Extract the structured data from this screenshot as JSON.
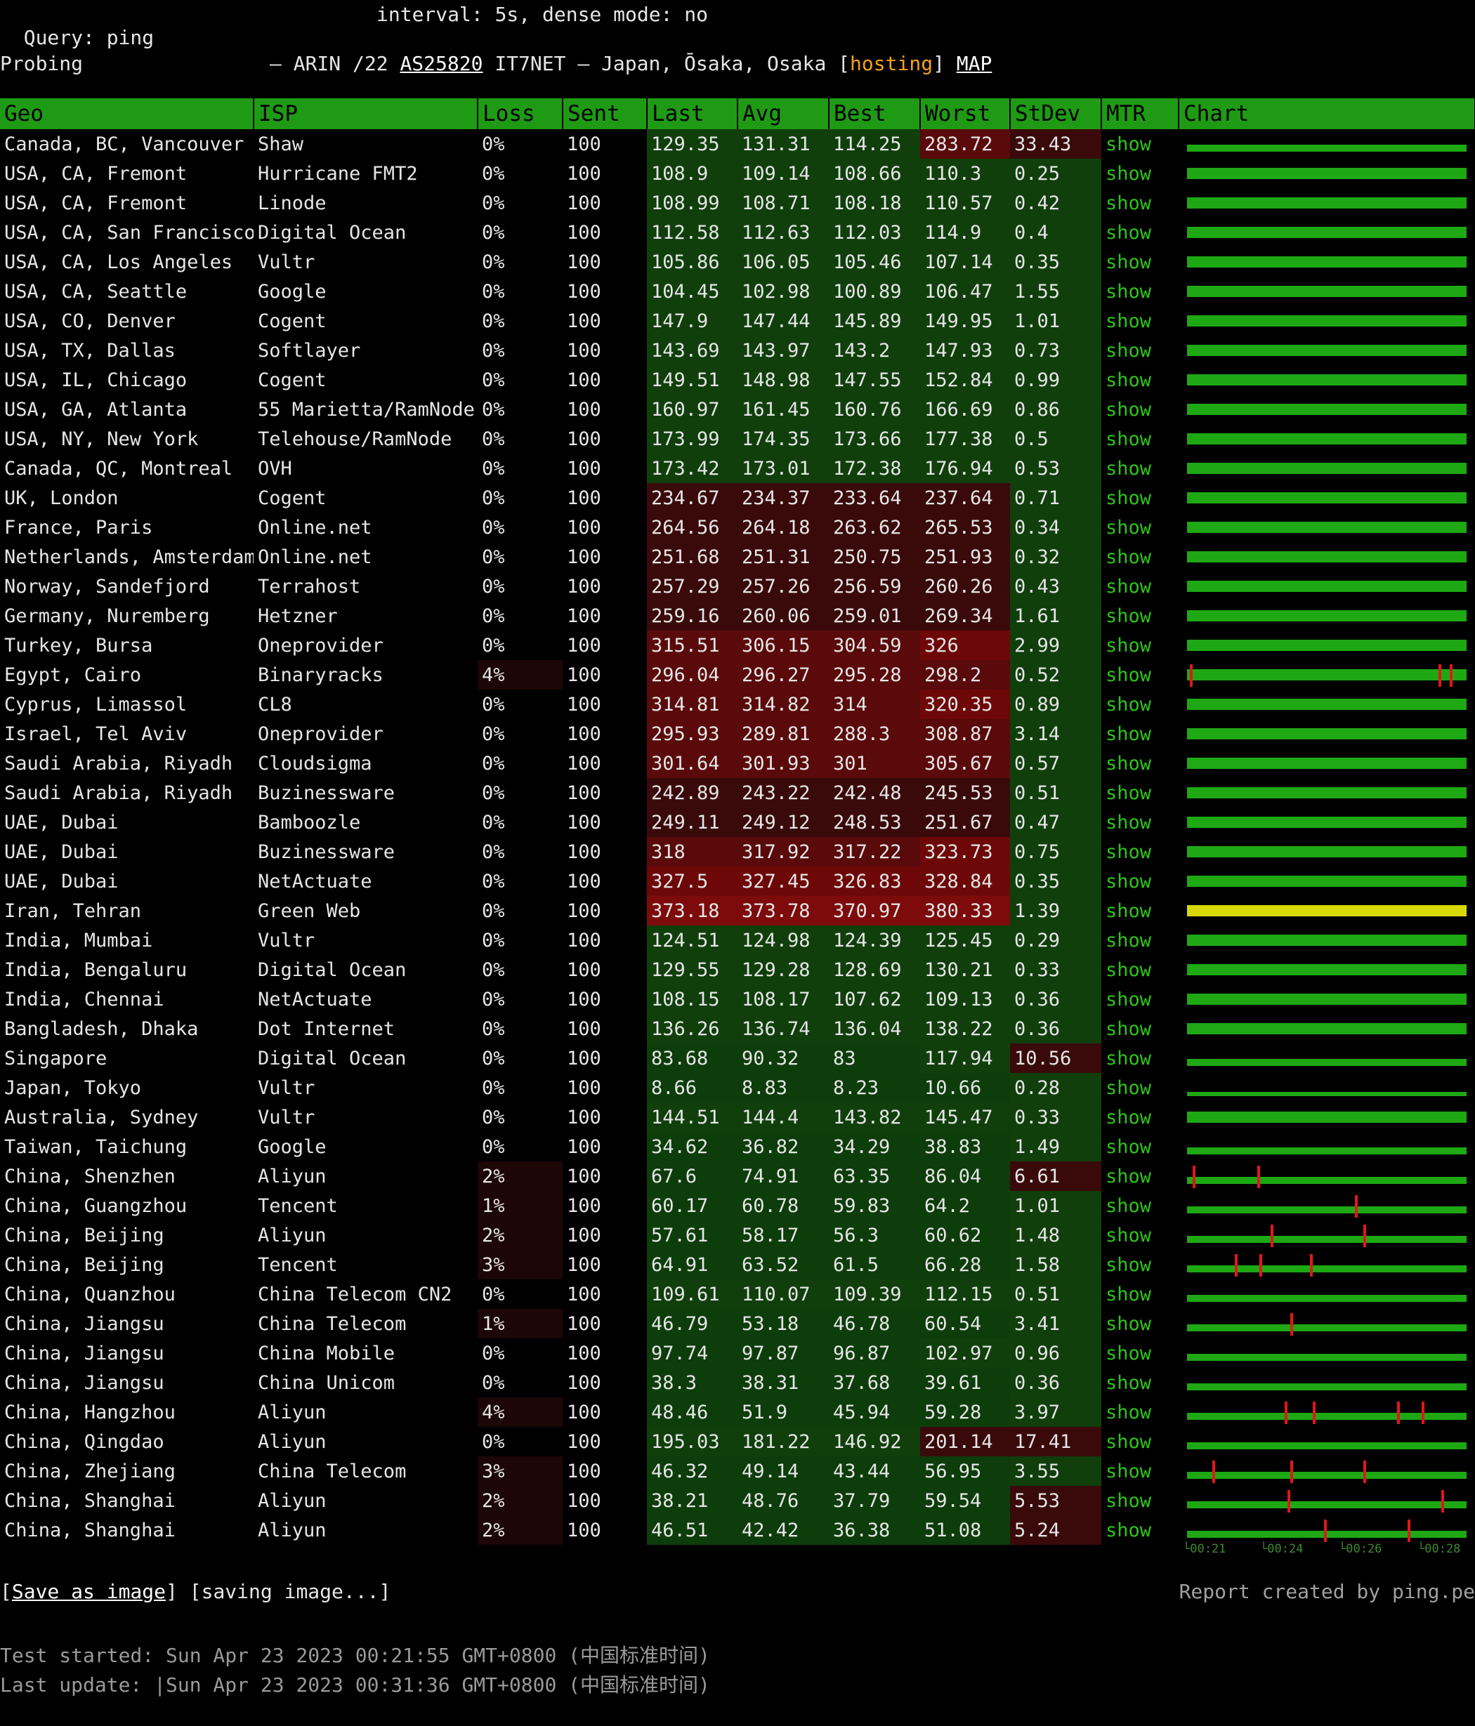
{
  "query": {
    "label": "Query: ping",
    "interval": "interval: 5s, dense mode: no"
  },
  "probing": {
    "label": "Probing",
    "prefix": "– ARIN /22",
    "asn": "AS25820",
    "location": "IT7NET – Japan, Ōsaka, Osaka [",
    "tag": "hosting",
    "tag_close": "]",
    "map": "MAP"
  },
  "columns": [
    "Geo",
    "ISP",
    "Loss",
    "Sent",
    "Last",
    "Avg",
    "Best",
    "Worst",
    "StDev",
    "MTR",
    "Chart"
  ],
  "rows": [
    {
      "geo": "Canada, BC, Vancouver",
      "isp": "Shaw",
      "loss": "0%",
      "sent": "100",
      "last": "129.35",
      "avg": "131.31",
      "best": "114.25",
      "worst": "283.72",
      "stdev": "33.43",
      "mtr": "show"
    },
    {
      "geo": "USA, CA, Fremont",
      "isp": "Hurricane FMT2",
      "loss": "0%",
      "sent": "100",
      "last": "108.9",
      "avg": "109.14",
      "best": "108.66",
      "worst": "110.3",
      "stdev": "0.25",
      "mtr": "show"
    },
    {
      "geo": "USA, CA, Fremont",
      "isp": "Linode",
      "loss": "0%",
      "sent": "100",
      "last": "108.99",
      "avg": "108.71",
      "best": "108.18",
      "worst": "110.57",
      "stdev": "0.42",
      "mtr": "show"
    },
    {
      "geo": "USA, CA, San Francisco",
      "isp": "Digital Ocean",
      "loss": "0%",
      "sent": "100",
      "last": "112.58",
      "avg": "112.63",
      "best": "112.03",
      "worst": "114.9",
      "stdev": "0.4",
      "mtr": "show"
    },
    {
      "geo": "USA, CA, Los Angeles",
      "isp": "Vultr",
      "loss": "0%",
      "sent": "100",
      "last": "105.86",
      "avg": "106.05",
      "best": "105.46",
      "worst": "107.14",
      "stdev": "0.35",
      "mtr": "show"
    },
    {
      "geo": "USA, CA, Seattle",
      "isp": "Google",
      "loss": "0%",
      "sent": "100",
      "last": "104.45",
      "avg": "102.98",
      "best": "100.89",
      "worst": "106.47",
      "stdev": "1.55",
      "mtr": "show"
    },
    {
      "geo": "USA, CO, Denver",
      "isp": "Cogent",
      "loss": "0%",
      "sent": "100",
      "last": "147.9",
      "avg": "147.44",
      "best": "145.89",
      "worst": "149.95",
      "stdev": "1.01",
      "mtr": "show"
    },
    {
      "geo": "USA, TX, Dallas",
      "isp": "Softlayer",
      "loss": "0%",
      "sent": "100",
      "last": "143.69",
      "avg": "143.97",
      "best": "143.2",
      "worst": "147.93",
      "stdev": "0.73",
      "mtr": "show"
    },
    {
      "geo": "USA, IL, Chicago",
      "isp": "Cogent",
      "loss": "0%",
      "sent": "100",
      "last": "149.51",
      "avg": "148.98",
      "best": "147.55",
      "worst": "152.84",
      "stdev": "0.99",
      "mtr": "show"
    },
    {
      "geo": "USA, GA, Atlanta",
      "isp": "55 Marietta/RamNode",
      "loss": "0%",
      "sent": "100",
      "last": "160.97",
      "avg": "161.45",
      "best": "160.76",
      "worst": "166.69",
      "stdev": "0.86",
      "mtr": "show"
    },
    {
      "geo": "USA, NY, New York",
      "isp": "Telehouse/RamNode",
      "loss": "0%",
      "sent": "100",
      "last": "173.99",
      "avg": "174.35",
      "best": "173.66",
      "worst": "177.38",
      "stdev": "0.5",
      "mtr": "show"
    },
    {
      "geo": "Canada, QC, Montreal",
      "isp": "OVH",
      "loss": "0%",
      "sent": "100",
      "last": "173.42",
      "avg": "173.01",
      "best": "172.38",
      "worst": "176.94",
      "stdev": "0.53",
      "mtr": "show"
    },
    {
      "geo": "UK, London",
      "isp": "Cogent",
      "loss": "0%",
      "sent": "100",
      "last": "234.67",
      "avg": "234.37",
      "best": "233.64",
      "worst": "237.64",
      "stdev": "0.71",
      "mtr": "show"
    },
    {
      "geo": "France, Paris",
      "isp": "Online.net",
      "loss": "0%",
      "sent": "100",
      "last": "264.56",
      "avg": "264.18",
      "best": "263.62",
      "worst": "265.53",
      "stdev": "0.34",
      "mtr": "show"
    },
    {
      "geo": "Netherlands, Amsterdam",
      "isp": "Online.net",
      "loss": "0%",
      "sent": "100",
      "last": "251.68",
      "avg": "251.31",
      "best": "250.75",
      "worst": "251.93",
      "stdev": "0.32",
      "mtr": "show"
    },
    {
      "geo": "Norway, Sandefjord",
      "isp": "Terrahost",
      "loss": "0%",
      "sent": "100",
      "last": "257.29",
      "avg": "257.26",
      "best": "256.59",
      "worst": "260.26",
      "stdev": "0.43",
      "mtr": "show"
    },
    {
      "geo": "Germany, Nuremberg",
      "isp": "Hetzner",
      "loss": "0%",
      "sent": "100",
      "last": "259.16",
      "avg": "260.06",
      "best": "259.01",
      "worst": "269.34",
      "stdev": "1.61",
      "mtr": "show"
    },
    {
      "geo": "Turkey, Bursa",
      "isp": "Oneprovider",
      "loss": "0%",
      "sent": "100",
      "last": "315.51",
      "avg": "306.15",
      "best": "304.59",
      "worst": "326",
      "stdev": "2.99",
      "mtr": "show"
    },
    {
      "geo": "Egypt, Cairo",
      "isp": "Binaryracks",
      "loss": "4%",
      "sent": "100",
      "last": "296.04",
      "avg": "296.27",
      "best": "295.28",
      "worst": "298.2",
      "stdev": "0.52",
      "mtr": "show"
    },
    {
      "geo": "Cyprus, Limassol",
      "isp": "CL8",
      "loss": "0%",
      "sent": "100",
      "last": "314.81",
      "avg": "314.82",
      "best": "314",
      "worst": "320.35",
      "stdev": "0.89",
      "mtr": "show"
    },
    {
      "geo": "Israel, Tel Aviv",
      "isp": "Oneprovider",
      "loss": "0%",
      "sent": "100",
      "last": "295.93",
      "avg": "289.81",
      "best": "288.3",
      "worst": "308.87",
      "stdev": "3.14",
      "mtr": "show"
    },
    {
      "geo": "Saudi Arabia, Riyadh",
      "isp": "Cloudsigma",
      "loss": "0%",
      "sent": "100",
      "last": "301.64",
      "avg": "301.93",
      "best": "301",
      "worst": "305.67",
      "stdev": "0.57",
      "mtr": "show"
    },
    {
      "geo": "Saudi Arabia, Riyadh",
      "isp": "Buzinessware",
      "loss": "0%",
      "sent": "100",
      "last": "242.89",
      "avg": "243.22",
      "best": "242.48",
      "worst": "245.53",
      "stdev": "0.51",
      "mtr": "show"
    },
    {
      "geo": "UAE, Dubai",
      "isp": "Bamboozle",
      "loss": "0%",
      "sent": "100",
      "last": "249.11",
      "avg": "249.12",
      "best": "248.53",
      "worst": "251.67",
      "stdev": "0.47",
      "mtr": "show"
    },
    {
      "geo": "UAE, Dubai",
      "isp": "Buzinessware",
      "loss": "0%",
      "sent": "100",
      "last": "318",
      "avg": "317.92",
      "best": "317.22",
      "worst": "323.73",
      "stdev": "0.75",
      "mtr": "show"
    },
    {
      "geo": "UAE, Dubai",
      "isp": "NetActuate",
      "loss": "0%",
      "sent": "100",
      "last": "327.5",
      "avg": "327.45",
      "best": "326.83",
      "worst": "328.84",
      "stdev": "0.35",
      "mtr": "show"
    },
    {
      "geo": "Iran, Tehran",
      "isp": "Green Web",
      "loss": "0%",
      "sent": "100",
      "last": "373.18",
      "avg": "373.78",
      "best": "370.97",
      "worst": "380.33",
      "stdev": "1.39",
      "mtr": "show"
    },
    {
      "geo": "India, Mumbai",
      "isp": "Vultr",
      "loss": "0%",
      "sent": "100",
      "last": "124.51",
      "avg": "124.98",
      "best": "124.39",
      "worst": "125.45",
      "stdev": "0.29",
      "mtr": "show"
    },
    {
      "geo": "India, Bengaluru",
      "isp": "Digital Ocean",
      "loss": "0%",
      "sent": "100",
      "last": "129.55",
      "avg": "129.28",
      "best": "128.69",
      "worst": "130.21",
      "stdev": "0.33",
      "mtr": "show"
    },
    {
      "geo": "India, Chennai",
      "isp": "NetActuate",
      "loss": "0%",
      "sent": "100",
      "last": "108.15",
      "avg": "108.17",
      "best": "107.62",
      "worst": "109.13",
      "stdev": "0.36",
      "mtr": "show"
    },
    {
      "geo": "Bangladesh, Dhaka",
      "isp": "Dot Internet",
      "loss": "0%",
      "sent": "100",
      "last": "136.26",
      "avg": "136.74",
      "best": "136.04",
      "worst": "138.22",
      "stdev": "0.36",
      "mtr": "show"
    },
    {
      "geo": "Singapore",
      "isp": "Digital Ocean",
      "loss": "0%",
      "sent": "100",
      "last": "83.68",
      "avg": "90.32",
      "best": "83",
      "worst": "117.94",
      "stdev": "10.56",
      "mtr": "show"
    },
    {
      "geo": "Japan, Tokyo",
      "isp": "Vultr",
      "loss": "0%",
      "sent": "100",
      "last": "8.66",
      "avg": "8.83",
      "best": "8.23",
      "worst": "10.66",
      "stdev": "0.28",
      "mtr": "show"
    },
    {
      "geo": "Australia, Sydney",
      "isp": "Vultr",
      "loss": "0%",
      "sent": "100",
      "last": "144.51",
      "avg": "144.4",
      "best": "143.82",
      "worst": "145.47",
      "stdev": "0.33",
      "mtr": "show"
    },
    {
      "geo": "Taiwan, Taichung",
      "isp": "Google",
      "loss": "0%",
      "sent": "100",
      "last": "34.62",
      "avg": "36.82",
      "best": "34.29",
      "worst": "38.83",
      "stdev": "1.49",
      "mtr": "show"
    },
    {
      "geo": "China, Shenzhen",
      "isp": "Aliyun",
      "loss": "2%",
      "sent": "100",
      "last": "67.6",
      "avg": "74.91",
      "best": "63.35",
      "worst": "86.04",
      "stdev": "6.61",
      "mtr": "show"
    },
    {
      "geo": "China, Guangzhou",
      "isp": "Tencent",
      "loss": "1%",
      "sent": "100",
      "last": "60.17",
      "avg": "60.78",
      "best": "59.83",
      "worst": "64.2",
      "stdev": "1.01",
      "mtr": "show"
    },
    {
      "geo": "China, Beijing",
      "isp": "Aliyun",
      "loss": "2%",
      "sent": "100",
      "last": "57.61",
      "avg": "58.17",
      "best": "56.3",
      "worst": "60.62",
      "stdev": "1.48",
      "mtr": "show"
    },
    {
      "geo": "China, Beijing",
      "isp": "Tencent",
      "loss": "3%",
      "sent": "100",
      "last": "64.91",
      "avg": "63.52",
      "best": "61.5",
      "worst": "66.28",
      "stdev": "1.58",
      "mtr": "show"
    },
    {
      "geo": "China, Quanzhou",
      "isp": "China Telecom CN2",
      "loss": "0%",
      "sent": "100",
      "last": "109.61",
      "avg": "110.07",
      "best": "109.39",
      "worst": "112.15",
      "stdev": "0.51",
      "mtr": "show"
    },
    {
      "geo": "China, Jiangsu",
      "isp": "China Telecom",
      "loss": "1%",
      "sent": "100",
      "last": "46.79",
      "avg": "53.18",
      "best": "46.78",
      "worst": "60.54",
      "stdev": "3.41",
      "mtr": "show"
    },
    {
      "geo": "China, Jiangsu",
      "isp": "China Mobile",
      "loss": "0%",
      "sent": "100",
      "last": "97.74",
      "avg": "97.87",
      "best": "96.87",
      "worst": "102.97",
      "stdev": "0.96",
      "mtr": "show"
    },
    {
      "geo": "China, Jiangsu",
      "isp": "China Unicom",
      "loss": "0%",
      "sent": "100",
      "last": "38.3",
      "avg": "38.31",
      "best": "37.68",
      "worst": "39.61",
      "stdev": "0.36",
      "mtr": "show"
    },
    {
      "geo": "China, Hangzhou",
      "isp": "Aliyun",
      "loss": "4%",
      "sent": "100",
      "last": "48.46",
      "avg": "51.9",
      "best": "45.94",
      "worst": "59.28",
      "stdev": "3.97",
      "mtr": "show"
    },
    {
      "geo": "China, Qingdao",
      "isp": "Aliyun",
      "loss": "0%",
      "sent": "100",
      "last": "195.03",
      "avg": "181.22",
      "best": "146.92",
      "worst": "201.14",
      "stdev": "17.41",
      "mtr": "show"
    },
    {
      "geo": "China, Zhejiang",
      "isp": "China Telecom",
      "loss": "3%",
      "sent": "100",
      "last": "46.32",
      "avg": "49.14",
      "best": "43.44",
      "worst": "56.95",
      "stdev": "3.55",
      "mtr": "show"
    },
    {
      "geo": "China, Shanghai",
      "isp": "Aliyun",
      "loss": "2%",
      "sent": "100",
      "last": "38.21",
      "avg": "48.76",
      "best": "37.79",
      "worst": "59.54",
      "stdev": "5.53",
      "mtr": "show"
    },
    {
      "geo": "China, Shanghai",
      "isp": "Aliyun",
      "loss": "2%",
      "sent": "100",
      "last": "46.51",
      "avg": "42.42",
      "best": "36.38",
      "worst": "51.08",
      "stdev": "5.24",
      "mtr": "show"
    }
  ],
  "chart_axis": [
    "└00:21",
    "└00:24",
    "└00:26",
    "└00:28"
  ],
  "footer": {
    "save": "Save as image",
    "saving": " [saving image...]",
    "credit": "Report created by ping.pe",
    "started": "Test started: Sun Apr 23 2023 00:21:55 GMT+0800 (中国标准时间)",
    "updated": "Last update: |Sun Apr 23 2023 00:31:36 GMT+0800 (中国标准时间)"
  },
  "colors": {
    "header_green": "#1f9a14",
    "link_green": "#2ec418",
    "loss_red": "#e11818",
    "hosting_orange": "#f3a21b",
    "tehran_yellow": "#d8d805"
  }
}
